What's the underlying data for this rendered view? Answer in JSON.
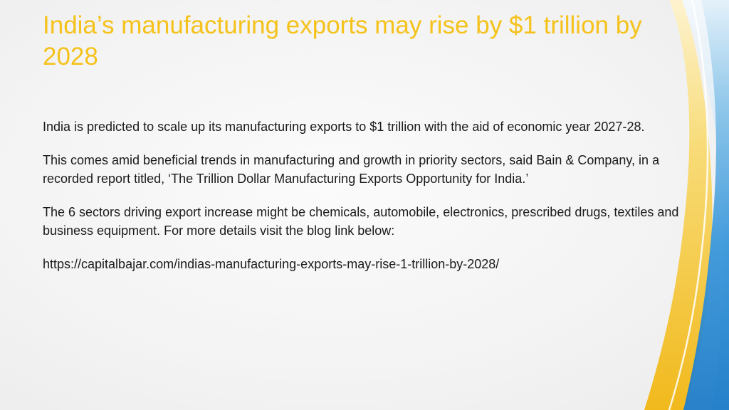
{
  "slide": {
    "title": "India’s manufacturing exports may rise by $1 trillion by 2028",
    "paragraphs": [
      "India is predicted to scale up its manufacturing exports to $1 trillion with the aid of economic year 2027-28.",
      "This comes amid beneficial trends in manufacturing and growth in priority sectors, said Bain & Company, in a recorded report titled, ‘The Trillion Dollar Manufacturing Exports Opportunity for India.’",
      "The 6 sectors driving export increase might be chemicals, automobile, electronics, prescribed drugs, textiles and business equipment. For more details visit the blog link below:",
      "https://capitalbajar.com/indias-manufacturing-exports-may-rise-1-trillion-by-2028/"
    ]
  },
  "theme": {
    "title_color": "#F5C21B",
    "text_color": "#1A1A1A",
    "accent_blue": "#2E8FD6",
    "accent_gold": "#F4C12A"
  }
}
